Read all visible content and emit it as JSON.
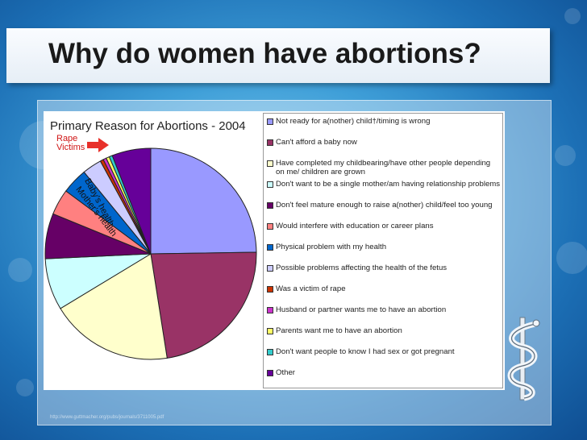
{
  "slide": {
    "title": "Why do women have abortions?"
  },
  "footnote": "http://www.guttmacher.org/pubs/journals/3711005.pdf",
  "colors": {
    "arrow": "#e8302a",
    "annotation": "#d01515"
  },
  "chart_data": {
    "type": "pie",
    "title": "Primary Reason for Abortions - 2004",
    "legend_position": "right",
    "annotations": [
      {
        "text": "Rape Victims",
        "target": "Was a victim of rape"
      },
      {
        "text": "Baby's health",
        "target": "Possible problems affecting the health of the fetus"
      },
      {
        "text": "Mother's health",
        "target": "Physical problem with my health"
      }
    ],
    "slices": [
      {
        "label": "Not ready for a(nother) child†/timing is wrong",
        "value": 25,
        "color": "#9999ff"
      },
      {
        "label": "Can't afford a baby now",
        "value": 23,
        "color": "#993366"
      },
      {
        "label": "Have completed my childbearing/have other people depending on me/ children are grown",
        "value": 19,
        "color": "#ffffcc"
      },
      {
        "label": "Don't want to be a single mother/am having relationship problems",
        "value": 8,
        "color": "#ccffff"
      },
      {
        "label": "Don't feel mature enough to raise a(nother) child/feel too young",
        "value": 7,
        "color": "#660066"
      },
      {
        "label": "Would interfere with education or career plans",
        "value": 4,
        "color": "#ff8080"
      },
      {
        "label": "Physical problem with my health",
        "value": 4,
        "color": "#0066cc"
      },
      {
        "label": "Possible problems affecting the health of the fetus",
        "value": 3,
        "color": "#ccccff"
      },
      {
        "label": "Was a victim of rape",
        "value": 0.5,
        "color": "#cc3300"
      },
      {
        "label": "Husband or partner wants me to have an abortion",
        "value": 0.5,
        "color": "#cc33cc"
      },
      {
        "label": "Parents want me to have an abortion",
        "value": 0.5,
        "color": "#ffff66"
      },
      {
        "label": "Don't want people to know I had sex or got pregnant",
        "value": 0.5,
        "color": "#33cccc"
      },
      {
        "label": "Other",
        "value": 6,
        "color": "#660099"
      }
    ]
  }
}
